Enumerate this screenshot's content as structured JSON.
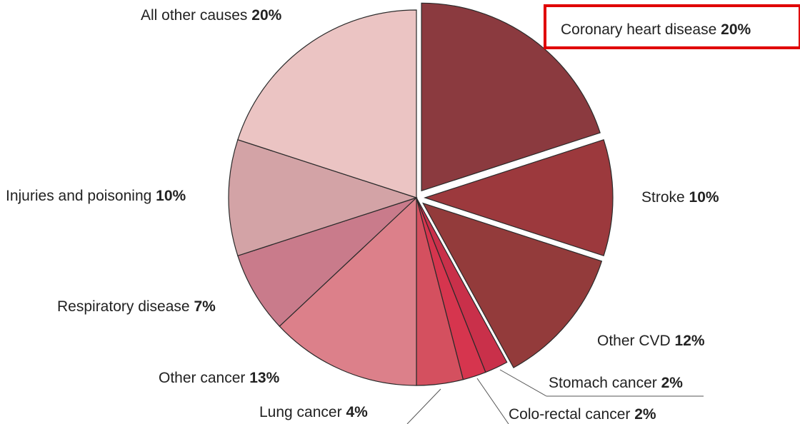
{
  "chart_data": {
    "type": "pie",
    "categories": [
      "Coronary heart disease",
      "Stroke",
      "Other CVD",
      "Stomach cancer",
      "Colo-rectal cancer",
      "Lung cancer",
      "Other cancer",
      "Respiratory disease",
      "Injuries and poisoning",
      "All other causes"
    ],
    "values": [
      20,
      10,
      12,
      2,
      2,
      4,
      13,
      7,
      10,
      20
    ],
    "value_labels": [
      "20%",
      "10%",
      "12%",
      "2%",
      "2%",
      "4%",
      "13%",
      "7%",
      "10%",
      "20%"
    ],
    "colors": [
      "#8b3a3f",
      "#9c393d",
      "#933b3b",
      "#c9304a",
      "#d6354e",
      "#d4505f",
      "#dc808a",
      "#c97b8b",
      "#d3a3a6",
      "#ebc4c3"
    ]
  }
}
